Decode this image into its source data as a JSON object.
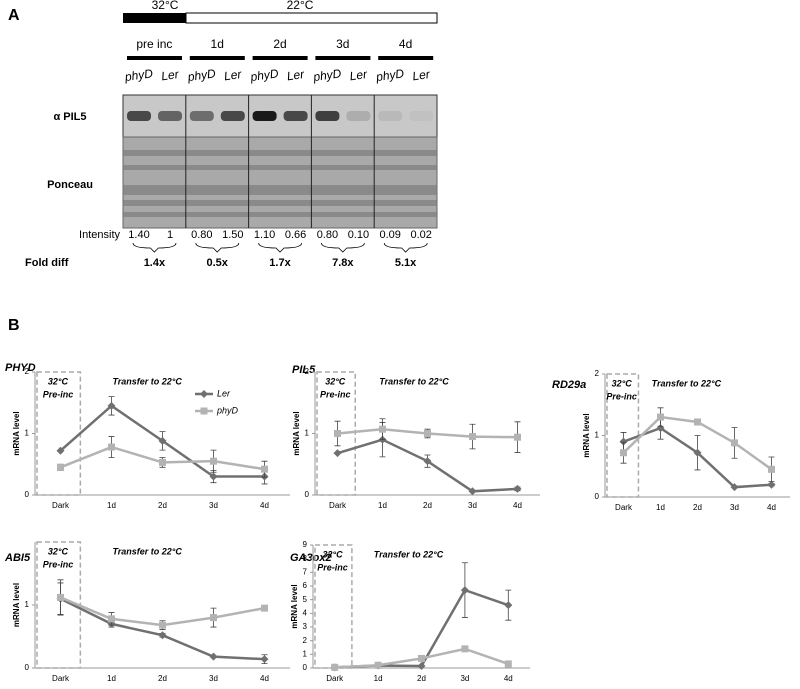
{
  "panel_a": {
    "label": "A",
    "temperatures": [
      "32°C",
      "22°C"
    ],
    "groups": [
      {
        "name": "pre inc",
        "lanes": [
          "phyD",
          "Ler"
        ],
        "intensity": [
          "1.40",
          "1"
        ],
        "fold_diff": "1.4x"
      },
      {
        "name": "1d",
        "lanes": [
          "phyD",
          "Ler"
        ],
        "intensity": [
          "0.80",
          "1.50"
        ],
        "fold_diff": "0.5x"
      },
      {
        "name": "2d",
        "lanes": [
          "phyD",
          "Ler"
        ],
        "intensity": [
          "1.10",
          "0.66"
        ],
        "fold_diff": "1.7x"
      },
      {
        "name": "3d",
        "lanes": [
          "phyD",
          "Ler"
        ],
        "intensity": [
          "0.80",
          "0.10"
        ],
        "fold_diff": "7.8x"
      },
      {
        "name": "4d",
        "lanes": [
          "phyD",
          "Ler"
        ],
        "intensity": [
          "0.09",
          "0.02"
        ],
        "fold_diff": "5.1x"
      }
    ],
    "rows": [
      "α PIL5",
      "Ponceau"
    ],
    "intensity_label": "Intensity",
    "fold_label": "Fold diff"
  },
  "panel_b_label": "B",
  "chart_data": [
    {
      "type": "line",
      "title": "PHYD",
      "y_label": "mRNA level",
      "categories": [
        "Dark",
        "1d",
        "2d",
        "3d",
        "4d"
      ],
      "ylim": [
        0,
        2
      ],
      "yticks": [
        0,
        1,
        2
      ],
      "annotations": [
        "32°C",
        "Pre-inc",
        "Transfer to 22°C"
      ],
      "legend": "upper right",
      "series": [
        {
          "name": "Ler",
          "color": "#707070",
          "marker": "diamond",
          "values": [
            0.72,
            1.45,
            0.88,
            0.3,
            0.3
          ],
          "errors": [
            0,
            0.15,
            0.15,
            0.1,
            0.12
          ]
        },
        {
          "name": "phyD",
          "color": "#b3b3b3",
          "marker": "square",
          "values": [
            0.45,
            0.78,
            0.53,
            0.55,
            0.42
          ],
          "errors": [
            0.05,
            0.17,
            0.08,
            0.18,
            0.13
          ]
        }
      ]
    },
    {
      "type": "line",
      "title": "PIL5",
      "y_label": "mRNA level",
      "categories": [
        "Dark",
        "1d",
        "2d",
        "3d",
        "4d"
      ],
      "ylim": [
        0,
        2
      ],
      "yticks": [
        0,
        1,
        2
      ],
      "annotations": [
        "32°C",
        "Pre-inc",
        "Transfer to 22°C"
      ],
      "series": [
        {
          "name": "Ler",
          "color": "#707070",
          "marker": "diamond",
          "values": [
            0.68,
            0.9,
            0.55,
            0.06,
            0.1
          ],
          "errors": [
            0,
            0.28,
            0.1,
            0,
            0.03
          ]
        },
        {
          "name": "phyD",
          "color": "#b3b3b3",
          "marker": "square",
          "values": [
            1.0,
            1.07,
            1.0,
            0.95,
            0.94
          ],
          "errors": [
            0.2,
            0.17,
            0.07,
            0.2,
            0.25
          ]
        }
      ]
    },
    {
      "type": "line",
      "title": "RD29a",
      "y_label": "mRNA level",
      "categories": [
        "Dark",
        "1d",
        "2d",
        "3d",
        "4d"
      ],
      "ylim": [
        0,
        2
      ],
      "yticks": [
        0,
        1,
        2
      ],
      "annotations": [
        "32°C",
        "Pre-inc",
        "Transfer to 22°C"
      ],
      "series": [
        {
          "name": "Ler",
          "color": "#707070",
          "marker": "diamond",
          "values": [
            0.9,
            1.12,
            0.72,
            0.16,
            0.2
          ],
          "errors": [
            0.15,
            0.18,
            0.28,
            0,
            0.02
          ]
        },
        {
          "name": "phyD",
          "color": "#b3b3b3",
          "marker": "square",
          "values": [
            0.72,
            1.3,
            1.22,
            0.88,
            0.45
          ],
          "errors": [
            0.17,
            0.15,
            0.05,
            0.25,
            0.2
          ]
        }
      ]
    },
    {
      "type": "line",
      "title": "ABI5",
      "y_label": "mRNA level",
      "categories": [
        "Dark",
        "1d",
        "2d",
        "3d",
        "4d"
      ],
      "ylim": [
        0,
        2
      ],
      "yticks": [
        0,
        1
      ],
      "annotations": [
        "32°C",
        "Pre-inc",
        "Transfer to 22°C"
      ],
      "series": [
        {
          "name": "Ler",
          "color": "#707070",
          "marker": "diamond",
          "values": [
            1.1,
            0.7,
            0.52,
            0.18,
            0.14
          ],
          "errors": [
            0.25,
            0.05,
            0.03,
            0,
            0.07
          ]
        },
        {
          "name": "phyD",
          "color": "#b3b3b3",
          "marker": "square",
          "values": [
            1.12,
            0.78,
            0.68,
            0.8,
            0.95
          ],
          "errors": [
            0.28,
            0.1,
            0.07,
            0.15,
            0.03
          ]
        }
      ]
    },
    {
      "type": "line",
      "title": "GA3ox2",
      "y_label": "mRNA level",
      "categories": [
        "Dark",
        "1d",
        "2d",
        "3d",
        "4d"
      ],
      "ylim": [
        0,
        9
      ],
      "yticks": [
        0,
        1,
        2,
        3,
        4,
        5,
        6,
        7,
        8,
        9
      ],
      "annotations": [
        "32°C",
        "Pre-inc",
        "Transfer to 22°C"
      ],
      "series": [
        {
          "name": "Ler",
          "color": "#707070",
          "marker": "diamond",
          "values": [
            0.05,
            0.18,
            0.15,
            5.7,
            4.6
          ],
          "errors": [
            0,
            0,
            0,
            2.0,
            1.1
          ]
        },
        {
          "name": "phyD",
          "color": "#b3b3b3",
          "marker": "square",
          "values": [
            0.05,
            0.2,
            0.7,
            1.4,
            0.3
          ],
          "errors": [
            0,
            0,
            0.1,
            0.2,
            0.05
          ]
        }
      ]
    }
  ]
}
